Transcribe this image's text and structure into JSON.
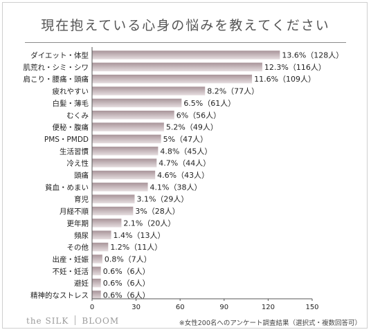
{
  "title": "現在抱えている心身の悩みを教えてください",
  "brand": {
    "left": "the SILK",
    "right": "BLOOM"
  },
  "footnote": "※女性200名へのアンケート調査結果（選択式・複数回答可）",
  "colors": {
    "bar_top": "#a89499",
    "bar_bottom": "#e6dee0",
    "text": "#222222",
    "axis": "#555555"
  },
  "chart_data": {
    "type": "bar",
    "orientation": "horizontal",
    "title": "現在抱えている心身の悩みを教えてください",
    "xlim": [
      0,
      150
    ],
    "xticks": [
      "0",
      "30",
      "60",
      "90",
      "120",
      "150"
    ],
    "categories": [
      "ダイエット・体型",
      "肌荒れ・シミ・シワ",
      "肩こり・腰痛・頭痛",
      "疲れやすい",
      "白髪・薄毛",
      "むくみ",
      "便秘・腹痛",
      "PMS・PMDD",
      "生活習慣",
      "冷え性",
      "頭痛",
      "貧血・めまい",
      "育児",
      "月経不順",
      "更年期",
      "頻尿",
      "その他",
      "出産・妊娠",
      "不妊・妊活",
      "避妊",
      "精神的なストレス"
    ],
    "values": [
      128,
      116,
      109,
      77,
      61,
      56,
      49,
      47,
      45,
      44,
      43,
      38,
      29,
      28,
      20,
      13,
      11,
      7,
      6,
      6,
      6
    ],
    "value_labels": [
      "13.6%（128人）",
      "12.3%（116人）",
      "11.6%（109人）",
      "8.2%（77人）",
      "6.5%（61人）",
      "6%（56人）",
      "5.2%（49人）",
      "5%（47人）",
      "4.8%（45人）",
      "4.7%（44人）",
      "4.6%（43人）",
      "4.1%（38人）",
      "3.1%（29人）",
      "3%（28人）",
      "2.1%（20人）",
      "1.4%（13人）",
      "1.2%（11人）",
      "0.8%（7人）",
      "0.6%（6人）",
      "0.6%（6人）",
      "0.6%（6人）"
    ],
    "grid": false,
    "legend": "none"
  }
}
